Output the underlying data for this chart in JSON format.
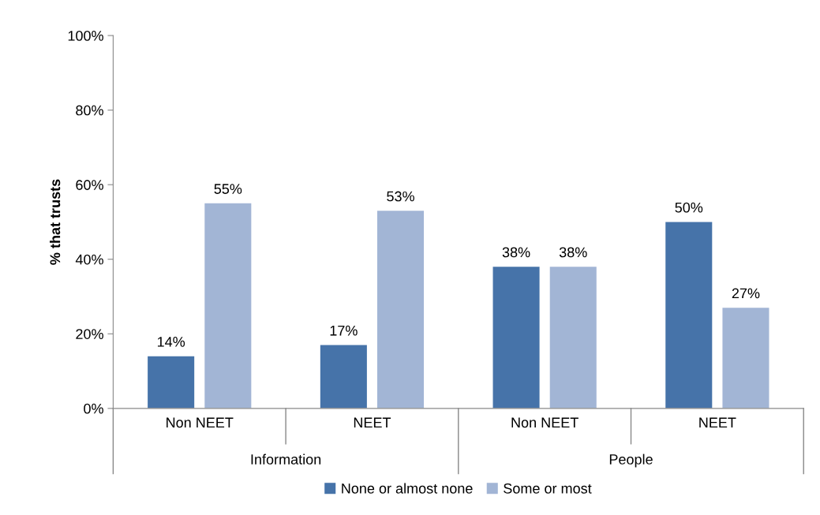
{
  "chart_data": {
    "type": "bar",
    "ylabel": "% that trusts",
    "categories": [
      "Non NEET",
      "NEET",
      "Non NEET",
      "NEET"
    ],
    "series": [
      {
        "name": "None or almost none",
        "color": "#4673a9",
        "values": [
          14,
          17,
          38,
          50
        ]
      },
      {
        "name": "Some or most",
        "color": "#a2b5d5",
        "values": [
          55,
          53,
          38,
          27
        ]
      }
    ],
    "value_labels": [
      [
        "14%",
        "17%",
        "38%",
        "50%"
      ],
      [
        "55%",
        "53%",
        "38%",
        "27%"
      ]
    ],
    "annotations": [
      "Information",
      "People"
    ],
    "ylim": [
      0,
      100
    ],
    "yticks": [
      {
        "value": 0,
        "label": "0%"
      },
      {
        "value": 20,
        "label": "20%"
      },
      {
        "value": 40,
        "label": "40%"
      },
      {
        "value": 60,
        "label": "60%"
      },
      {
        "value": 80,
        "label": "80%"
      },
      {
        "value": 100,
        "label": "100%"
      }
    ],
    "grid": false,
    "legend": "bottom"
  }
}
